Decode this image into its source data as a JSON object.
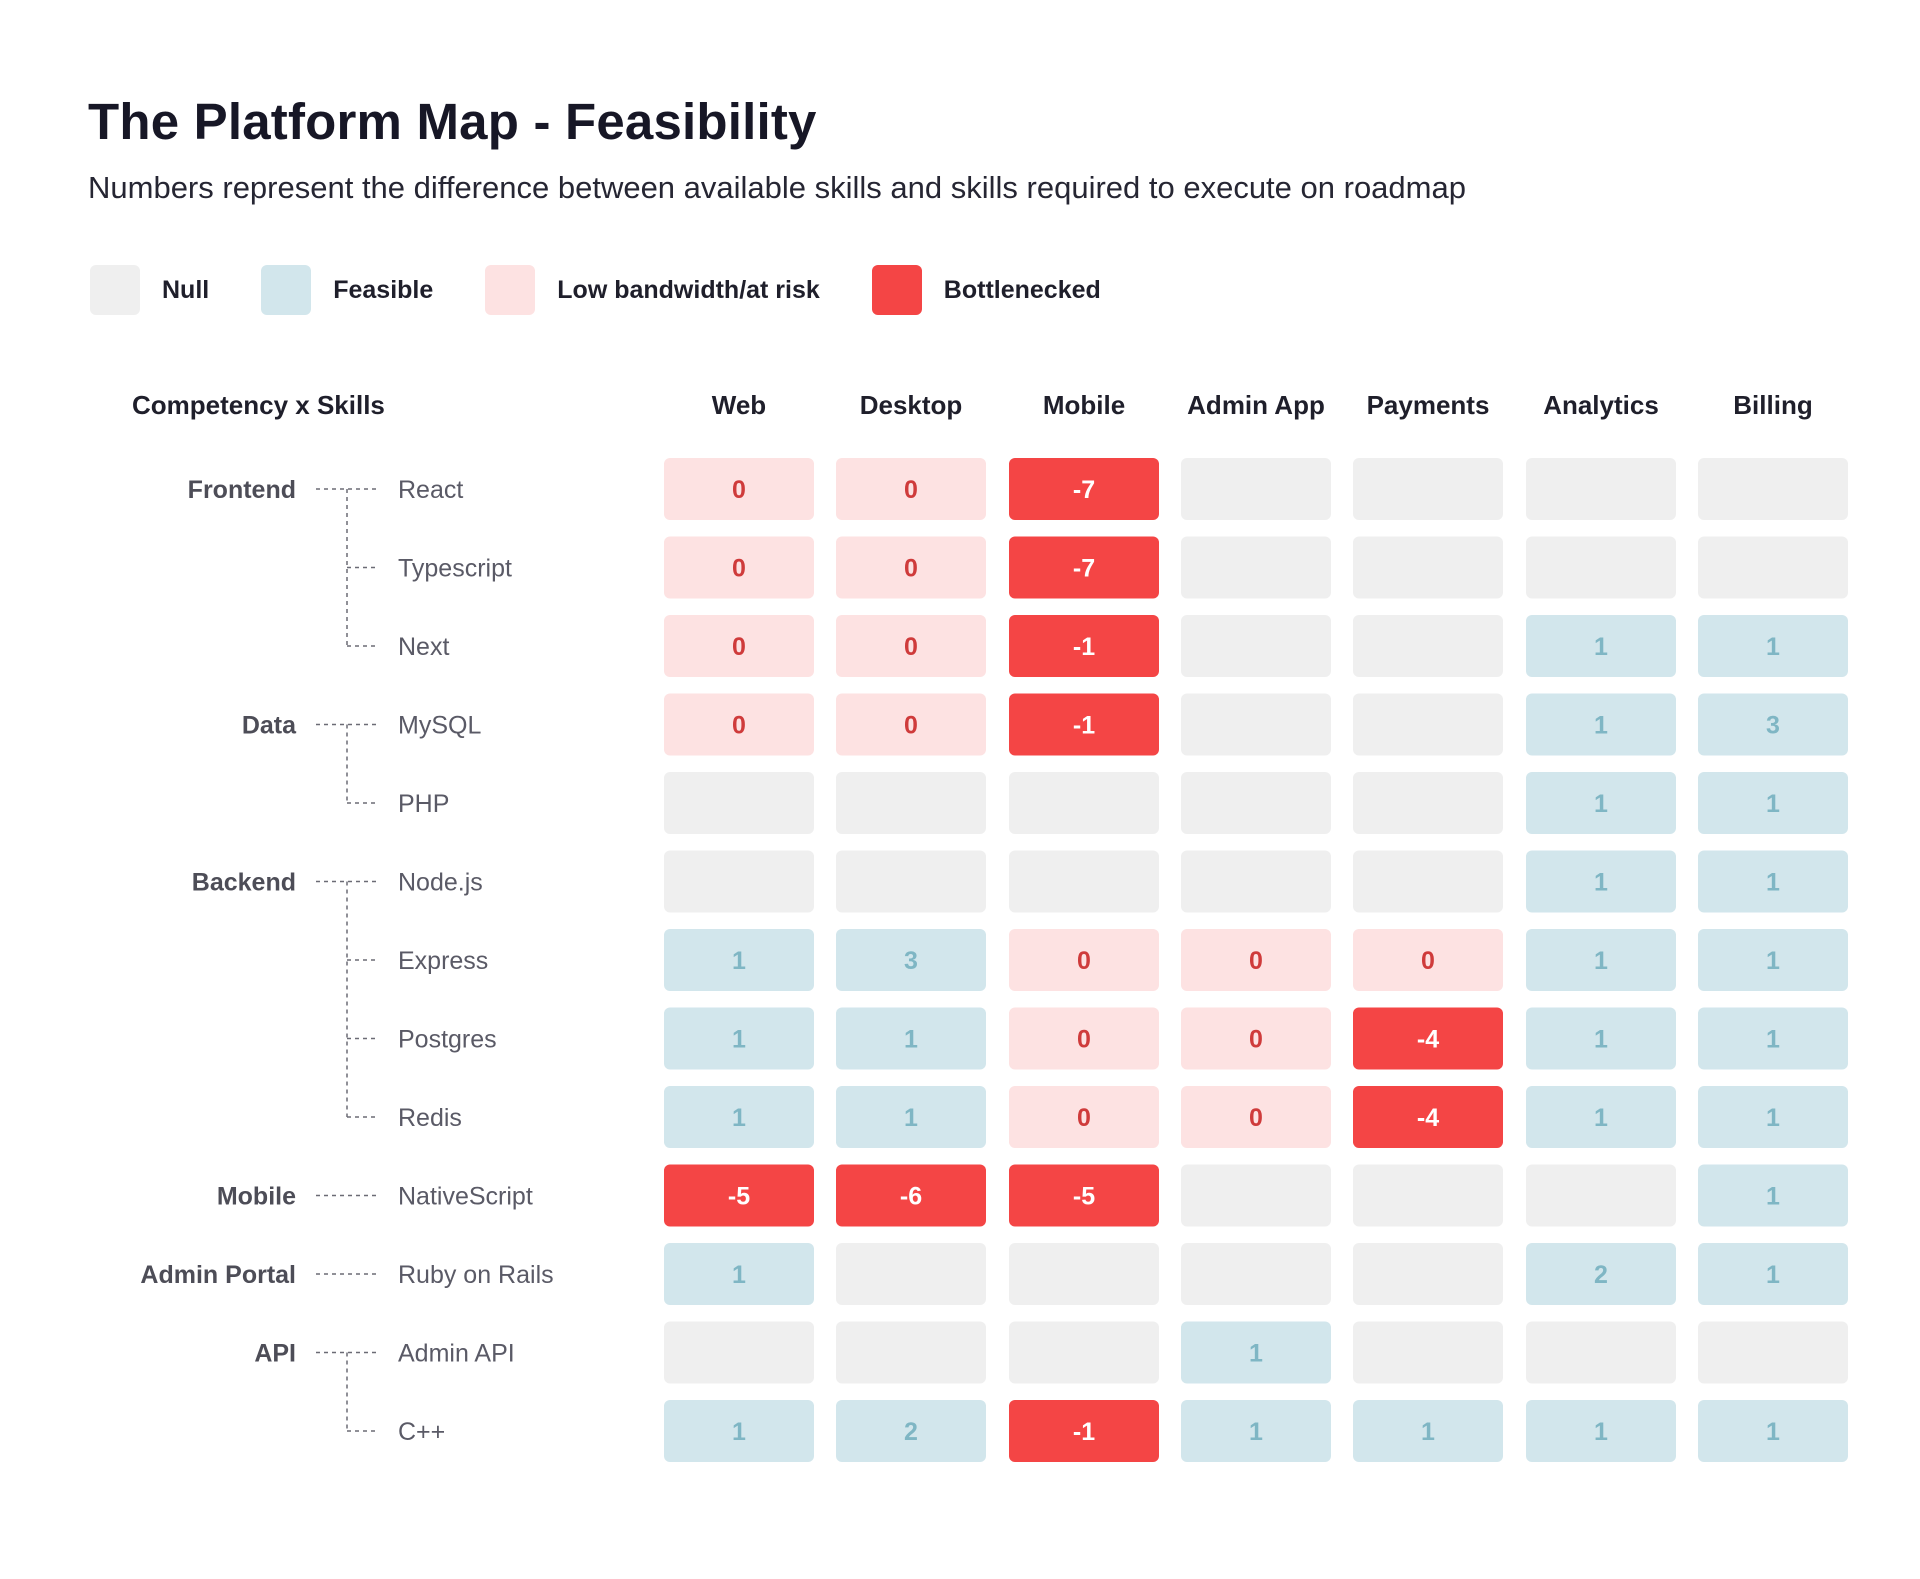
{
  "title": "The Platform Map - Feasibility",
  "subtitle": "Numbers represent the difference between available skills and skills required to execute on roadmap",
  "legend": [
    {
      "key": "null",
      "label": "Null"
    },
    {
      "key": "feasible",
      "label": "Feasible"
    },
    {
      "key": "low",
      "label": "Low bandwidth/at risk"
    },
    {
      "key": "bottleneck",
      "label": "Bottlenecked"
    }
  ],
  "colors": {
    "null": "#efefef",
    "feasible": "#d2e6ec",
    "low": "#fde2e2",
    "bottleneck": "#f44545",
    "feasible_text": "#7fb6c4",
    "low_text": "#cf3b3b",
    "bottleneck_text": "#ffffff"
  },
  "chart_data": {
    "type": "heatmap",
    "corner_label": "Competency x Skills",
    "columns": [
      "Web",
      "Desktop",
      "Mobile",
      "Admin App",
      "Payments",
      "Analytics",
      "Billing"
    ],
    "groups": [
      {
        "name": "Frontend",
        "rows": [
          {
            "skill": "React",
            "values": [
              0,
              0,
              -7,
              null,
              null,
              null,
              null
            ]
          },
          {
            "skill": "Typescript",
            "values": [
              0,
              0,
              -7,
              null,
              null,
              null,
              null
            ]
          },
          {
            "skill": "Next",
            "values": [
              0,
              0,
              -1,
              null,
              null,
              1,
              1
            ]
          }
        ]
      },
      {
        "name": "Data",
        "rows": [
          {
            "skill": "MySQL",
            "values": [
              0,
              0,
              -1,
              null,
              null,
              1,
              3
            ]
          },
          {
            "skill": "PHP",
            "values": [
              null,
              null,
              null,
              null,
              null,
              1,
              1
            ]
          }
        ]
      },
      {
        "name": "Backend",
        "rows": [
          {
            "skill": "Node.js",
            "values": [
              null,
              null,
              null,
              null,
              null,
              1,
              1
            ]
          },
          {
            "skill": "Express",
            "values": [
              1,
              3,
              0,
              0,
              0,
              1,
              1
            ]
          },
          {
            "skill": "Postgres",
            "values": [
              1,
              1,
              0,
              0,
              -4,
              1,
              1
            ]
          },
          {
            "skill": "Redis",
            "values": [
              1,
              1,
              0,
              0,
              -4,
              1,
              1
            ]
          }
        ]
      },
      {
        "name": "Mobile",
        "rows": [
          {
            "skill": "NativeScript",
            "values": [
              -5,
              -6,
              -5,
              null,
              null,
              null,
              1
            ]
          }
        ]
      },
      {
        "name": "Admin Portal",
        "rows": [
          {
            "skill": "Ruby on Rails",
            "values": [
              1,
              null,
              null,
              null,
              null,
              2,
              1
            ]
          }
        ]
      },
      {
        "name": "API",
        "rows": [
          {
            "skill": "Admin API",
            "values": [
              null,
              null,
              null,
              1,
              null,
              null,
              null
            ]
          },
          {
            "skill": "C++",
            "values": [
              1,
              2,
              -1,
              1,
              1,
              1,
              1
            ]
          }
        ]
      }
    ]
  }
}
